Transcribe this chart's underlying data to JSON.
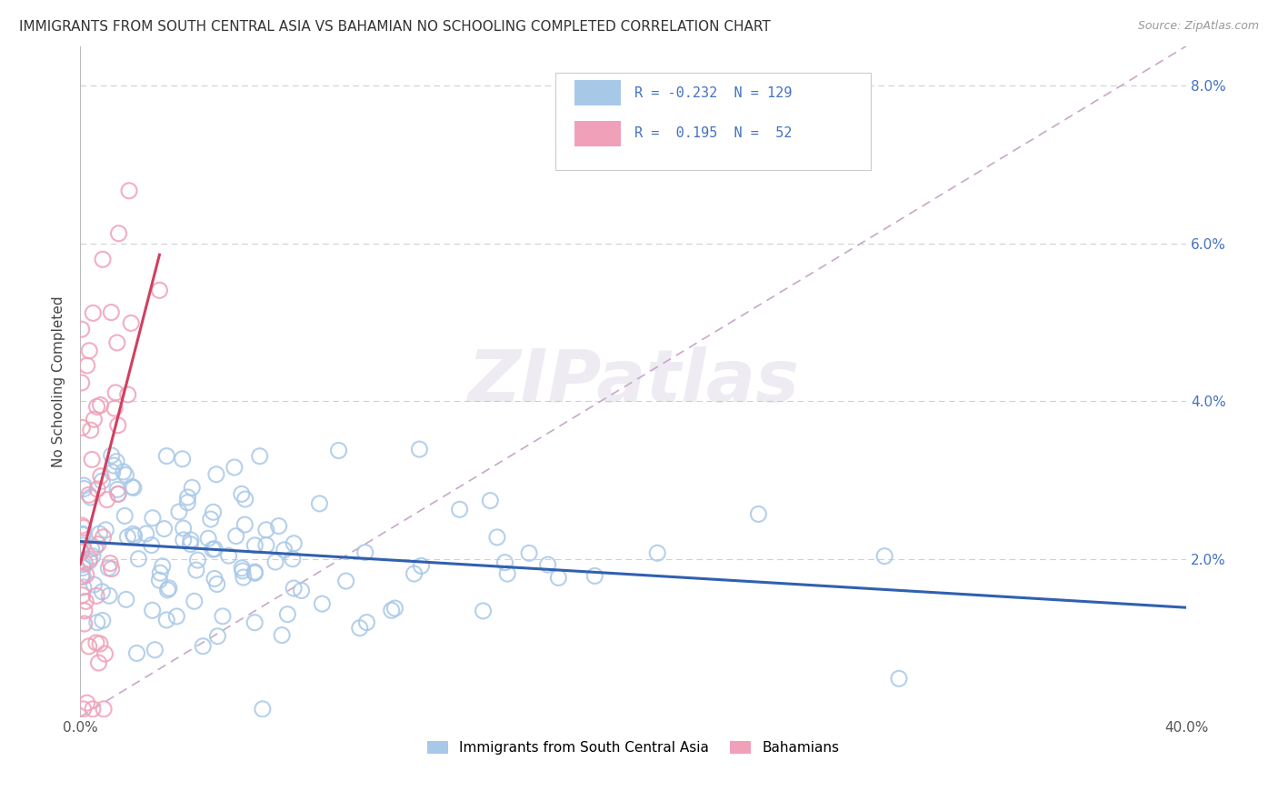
{
  "title": "IMMIGRANTS FROM SOUTH CENTRAL ASIA VS BAHAMIAN NO SCHOOLING COMPLETED CORRELATION CHART",
  "source": "Source: ZipAtlas.com",
  "ylabel": "No Schooling Completed",
  "ytick_vals": [
    0.0,
    0.02,
    0.04,
    0.06,
    0.08
  ],
  "ytick_labels": [
    "",
    "2.0%",
    "4.0%",
    "6.0%",
    "8.0%"
  ],
  "xlim": [
    0.0,
    0.4
  ],
  "ylim": [
    0.0,
    0.085
  ],
  "blue_color": "#a8c8e8",
  "pink_color": "#f0a0b8",
  "blue_line_color": "#3060b0",
  "pink_line_color": "#d04060",
  "diag_line_color": "#c8a8c8",
  "watermark": "ZIPatlas",
  "r1": -0.232,
  "n1": 129,
  "r2": 0.195,
  "n2": 52
}
